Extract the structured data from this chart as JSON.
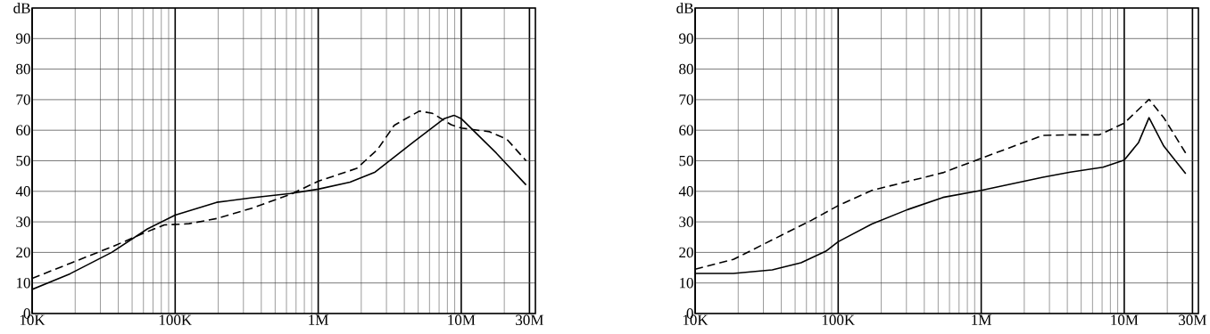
{
  "chart_data": [
    {
      "type": "line",
      "log": "x",
      "grid": true,
      "marker": "none",
      "xlim": [
        10000,
        33000000
      ],
      "ylim": [
        0,
        100
      ],
      "xticks": [
        {
          "value": 10000,
          "label": "10K"
        },
        {
          "value": 100000,
          "label": "100K"
        },
        {
          "value": 1000000,
          "label": "1M"
        },
        {
          "value": 10000000,
          "label": "10M"
        },
        {
          "value": 30000000,
          "label": "30M"
        }
      ],
      "yticks": [
        0,
        10,
        20,
        30,
        40,
        50,
        60,
        70,
        80,
        90,
        {
          "value": 100,
          "label": "dB"
        }
      ],
      "series": [
        {
          "color": "#000000",
          "line_style": "solid",
          "x": [
            10000,
            18400,
            36000,
            64000,
            100000,
            195000,
            345000,
            640000,
            1000000,
            1670000,
            2500000,
            4600000,
            7600000,
            8900000,
            10000000,
            17600000,
            28400000
          ],
          "values": [
            7.9,
            13,
            20,
            27.7,
            32.2,
            36.4,
            37.9,
            39.3,
            40.7,
            43,
            46.3,
            56,
            63.8,
            64.9,
            63.8,
            52.5,
            42.1
          ]
        },
        {
          "color": "#000000",
          "line_style": "dashed",
          "x": [
            10000,
            18400,
            36000,
            64000,
            84000,
            125000,
            195000,
            345000,
            640000,
            1000000,
            1860000,
            2600000,
            3400000,
            5100000,
            6300000,
            8500000,
            10000000,
            15800000,
            20900000,
            28400000
          ],
          "values": [
            11.5,
            16.4,
            21.8,
            26.8,
            29,
            29.4,
            31.1,
            34.5,
            39,
            43.3,
            47.5,
            53.7,
            61.6,
            66.3,
            65.5,
            61.8,
            60.7,
            59.5,
            57,
            50
          ]
        }
      ]
    },
    {
      "type": "line",
      "log": "x",
      "grid": true,
      "marker": "none",
      "xlim": [
        10000,
        33000000
      ],
      "ylim": [
        0,
        100
      ],
      "xticks": [
        {
          "value": 10000,
          "label": "10K"
        },
        {
          "value": 100000,
          "label": "100K"
        },
        {
          "value": 1000000,
          "label": "1M"
        },
        {
          "value": 10000000,
          "label": "10M"
        },
        {
          "value": 30000000,
          "label": "30M"
        }
      ],
      "yticks": [
        0,
        10,
        20,
        30,
        40,
        50,
        60,
        70,
        80,
        90,
        {
          "value": 100,
          "label": "dB"
        }
      ],
      "series": [
        {
          "color": "#000000",
          "line_style": "solid",
          "x": [
            10000,
            18500,
            34600,
            55000,
            82000,
            100000,
            172000,
            305000,
            540000,
            1000000,
            2700000,
            4200000,
            7100000,
            10000000,
            12600000,
            14900000,
            18900000,
            26900000
          ],
          "values": [
            13.1,
            13.1,
            14.3,
            16.6,
            20.4,
            23.5,
            29.3,
            34,
            38,
            40.3,
            44.6,
            46.3,
            47.9,
            50.2,
            56,
            64.1,
            54.8,
            45.8
          ]
        },
        {
          "color": "#000000",
          "line_style": "dashed",
          "x": [
            10000,
            18500,
            34600,
            65000,
            100000,
            172000,
            305000,
            540000,
            1000000,
            2700000,
            4200000,
            6700000,
            10000000,
            14900000,
            18900000,
            26900000
          ],
          "values": [
            14.5,
            17.7,
            24.1,
            30.5,
            35.3,
            40.3,
            43.2,
            46.1,
            50.8,
            58.3,
            58.5,
            58.5,
            62.3,
            70.1,
            64.1,
            52.5
          ]
        }
      ]
    }
  ]
}
